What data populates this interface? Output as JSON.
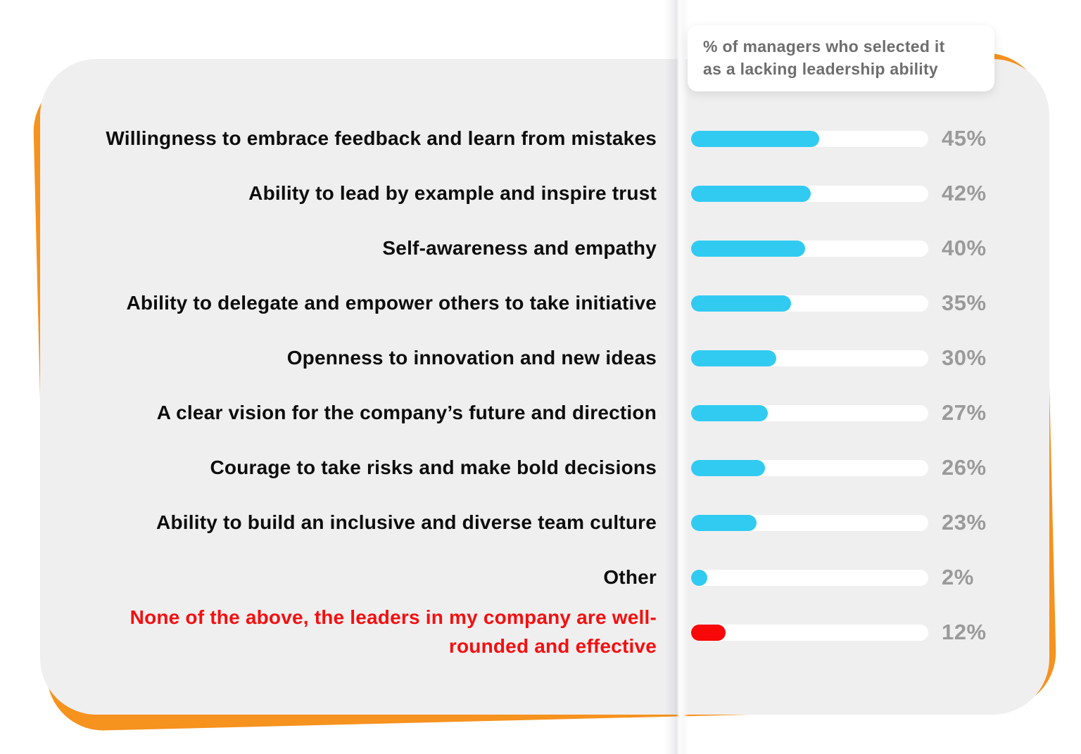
{
  "header_tooltip": {
    "line1": "% of managers who selected it",
    "line2": "as a lacking leadership ability"
  },
  "colors": {
    "accent_cyan": "#31cbf2",
    "highlight_red": "#f80808",
    "card_background": "#f0eff0",
    "orange_backdrop": "#f6921e",
    "bar_track_white": "#ffffff",
    "percent_gray": "#9a9a9a",
    "label_black": "#0d0d0d",
    "red_label": "#f50f0f",
    "tooltip_text_gray": "#6e6e6e"
  },
  "chart_data": {
    "type": "bar",
    "orientation": "horizontal",
    "title": "% of managers who selected it as a lacking leadership ability",
    "unit": "%",
    "value_labels_position": "right",
    "grid": false,
    "legend": false,
    "categories": [
      "Willingness to embrace feedback and learn from mistakes",
      "Ability to lead by example and inspire trust",
      "Self-awareness and empathy",
      "Ability to delegate and empower others to take initiative",
      "Openness to innovation and new ideas",
      "A clear vision for the company’s future and direction",
      "Courage to take risks and make bold decisions",
      "Ability to build an inclusive and diverse team culture",
      "Other",
      "None of the above, the leaders in my company are well-rounded and effective"
    ],
    "values": [
      45,
      42,
      40,
      35,
      30,
      27,
      26,
      23,
      2,
      12
    ],
    "xlim": [
      0,
      100
    ]
  },
  "rows": [
    {
      "label": "Willingness to embrace feedback and learn from mistakes",
      "value": 45,
      "display": "45%",
      "accent": "cyan"
    },
    {
      "label": "Ability to lead by example and inspire trust",
      "value": 42,
      "display": "42%",
      "accent": "cyan"
    },
    {
      "label": "Self-awareness and empathy",
      "value": 40,
      "display": "40%",
      "accent": "cyan"
    },
    {
      "label": "Ability to delegate and empower others to take initiative",
      "value": 35,
      "display": "35%",
      "accent": "cyan"
    },
    {
      "label": "Openness to innovation and new ideas",
      "value": 30,
      "display": "30%",
      "accent": "cyan"
    },
    {
      "label": "A clear vision for the company’s future and direction",
      "value": 27,
      "display": "27%",
      "accent": "cyan"
    },
    {
      "label": "Courage to take risks and make bold decisions",
      "value": 26,
      "display": "26%",
      "accent": "cyan"
    },
    {
      "label": "Ability to build an inclusive and diverse team culture",
      "value": 23,
      "display": "23%",
      "accent": "cyan"
    },
    {
      "label": "Other",
      "value": 2,
      "display": "2%",
      "accent": "cyan"
    },
    {
      "label": "None of the above, the leaders in my company are well-rounded and effective",
      "value": 12,
      "display": "12%",
      "accent": "red"
    }
  ]
}
